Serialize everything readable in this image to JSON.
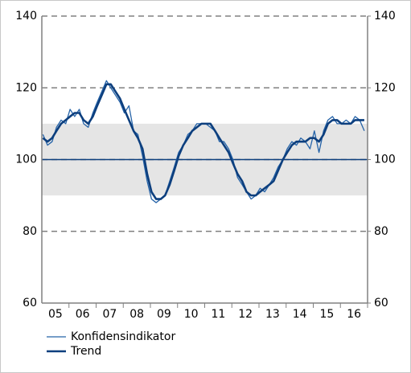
{
  "chart_data": {
    "type": "line",
    "x": [
      2005.04,
      2005.21,
      2005.38,
      2005.54,
      2005.71,
      2005.88,
      2006.04,
      2006.21,
      2006.38,
      2006.54,
      2006.71,
      2006.88,
      2007.04,
      2007.21,
      2007.38,
      2007.54,
      2007.71,
      2007.88,
      2008.04,
      2008.21,
      2008.38,
      2008.54,
      2008.71,
      2008.88,
      2009.04,
      2009.21,
      2009.38,
      2009.54,
      2009.71,
      2009.88,
      2010.04,
      2010.21,
      2010.38,
      2010.54,
      2010.71,
      2010.88,
      2011.04,
      2011.21,
      2011.38,
      2011.54,
      2011.71,
      2011.88,
      2012.04,
      2012.21,
      2012.38,
      2012.54,
      2012.71,
      2012.88,
      2013.04,
      2013.21,
      2013.38,
      2013.54,
      2013.71,
      2013.88,
      2014.04,
      2014.21,
      2014.38,
      2014.54,
      2014.71,
      2014.88,
      2015.04,
      2015.21,
      2015.38,
      2015.54,
      2015.71,
      2015.88,
      2016.04,
      2016.21,
      2016.38,
      2016.54,
      2016.71,
      2016.88
    ],
    "series": [
      {
        "name": "Konfidensindikator",
        "color": "#2563a8",
        "width": 1.3,
        "values": [
          107,
          104,
          105,
          109,
          111,
          110,
          114,
          112,
          114,
          110,
          109,
          113,
          116,
          119,
          122,
          120,
          118,
          116,
          113,
          115,
          108,
          107,
          101,
          94,
          89,
          88,
          89,
          90,
          94,
          98,
          102,
          104,
          107,
          108,
          110,
          110,
          110,
          109,
          108,
          105,
          105,
          103,
          100,
          95,
          93,
          91,
          89,
          90,
          92,
          91,
          93,
          95,
          98,
          100,
          103,
          105,
          104,
          106,
          105,
          103,
          108,
          102,
          108,
          111,
          112,
          110,
          110,
          111,
          110,
          112,
          111,
          108
        ]
      },
      {
        "name": "Trend",
        "color": "#0d3f7e",
        "width": 2.6,
        "values": [
          106,
          105,
          106,
          108,
          110,
          111,
          112,
          113,
          113,
          111,
          110,
          112,
          115,
          118,
          121,
          121,
          119,
          117,
          114,
          111,
          108,
          106,
          103,
          96,
          91,
          89,
          89,
          90,
          93,
          97,
          101,
          104,
          106,
          108,
          109,
          110,
          110,
          110,
          108,
          106,
          104,
          102,
          99,
          96,
          94,
          91,
          90,
          90,
          91,
          92,
          93,
          94,
          97,
          100,
          102,
          104,
          105,
          105,
          105,
          106,
          106,
          105,
          107,
          110,
          111,
          111,
          110,
          110,
          110,
          111,
          111,
          111
        ]
      }
    ],
    "xlim": [
      2005,
      2017
    ],
    "xticks": [
      {
        "value": 2005.5,
        "label": "05"
      },
      {
        "value": 2006.5,
        "label": "06"
      },
      {
        "value": 2007.5,
        "label": "07"
      },
      {
        "value": 2008.5,
        "label": "08"
      },
      {
        "value": 2009.5,
        "label": "09"
      },
      {
        "value": 2010.5,
        "label": "10"
      },
      {
        "value": 2011.5,
        "label": "11"
      },
      {
        "value": 2012.5,
        "label": "12"
      },
      {
        "value": 2013.5,
        "label": "13"
      },
      {
        "value": 2014.5,
        "label": "14"
      },
      {
        "value": 2015.5,
        "label": "15"
      },
      {
        "value": 2016.5,
        "label": "16"
      }
    ],
    "ylim": [
      60,
      140
    ],
    "yticks": [
      60,
      80,
      100,
      120,
      140
    ],
    "y2lim": [
      60,
      140
    ],
    "y2ticks": [
      60,
      80,
      100,
      120,
      140
    ],
    "shaded_range": [
      90,
      110
    ],
    "reference_line": 100,
    "grid": true,
    "legend": "bottom-left"
  }
}
